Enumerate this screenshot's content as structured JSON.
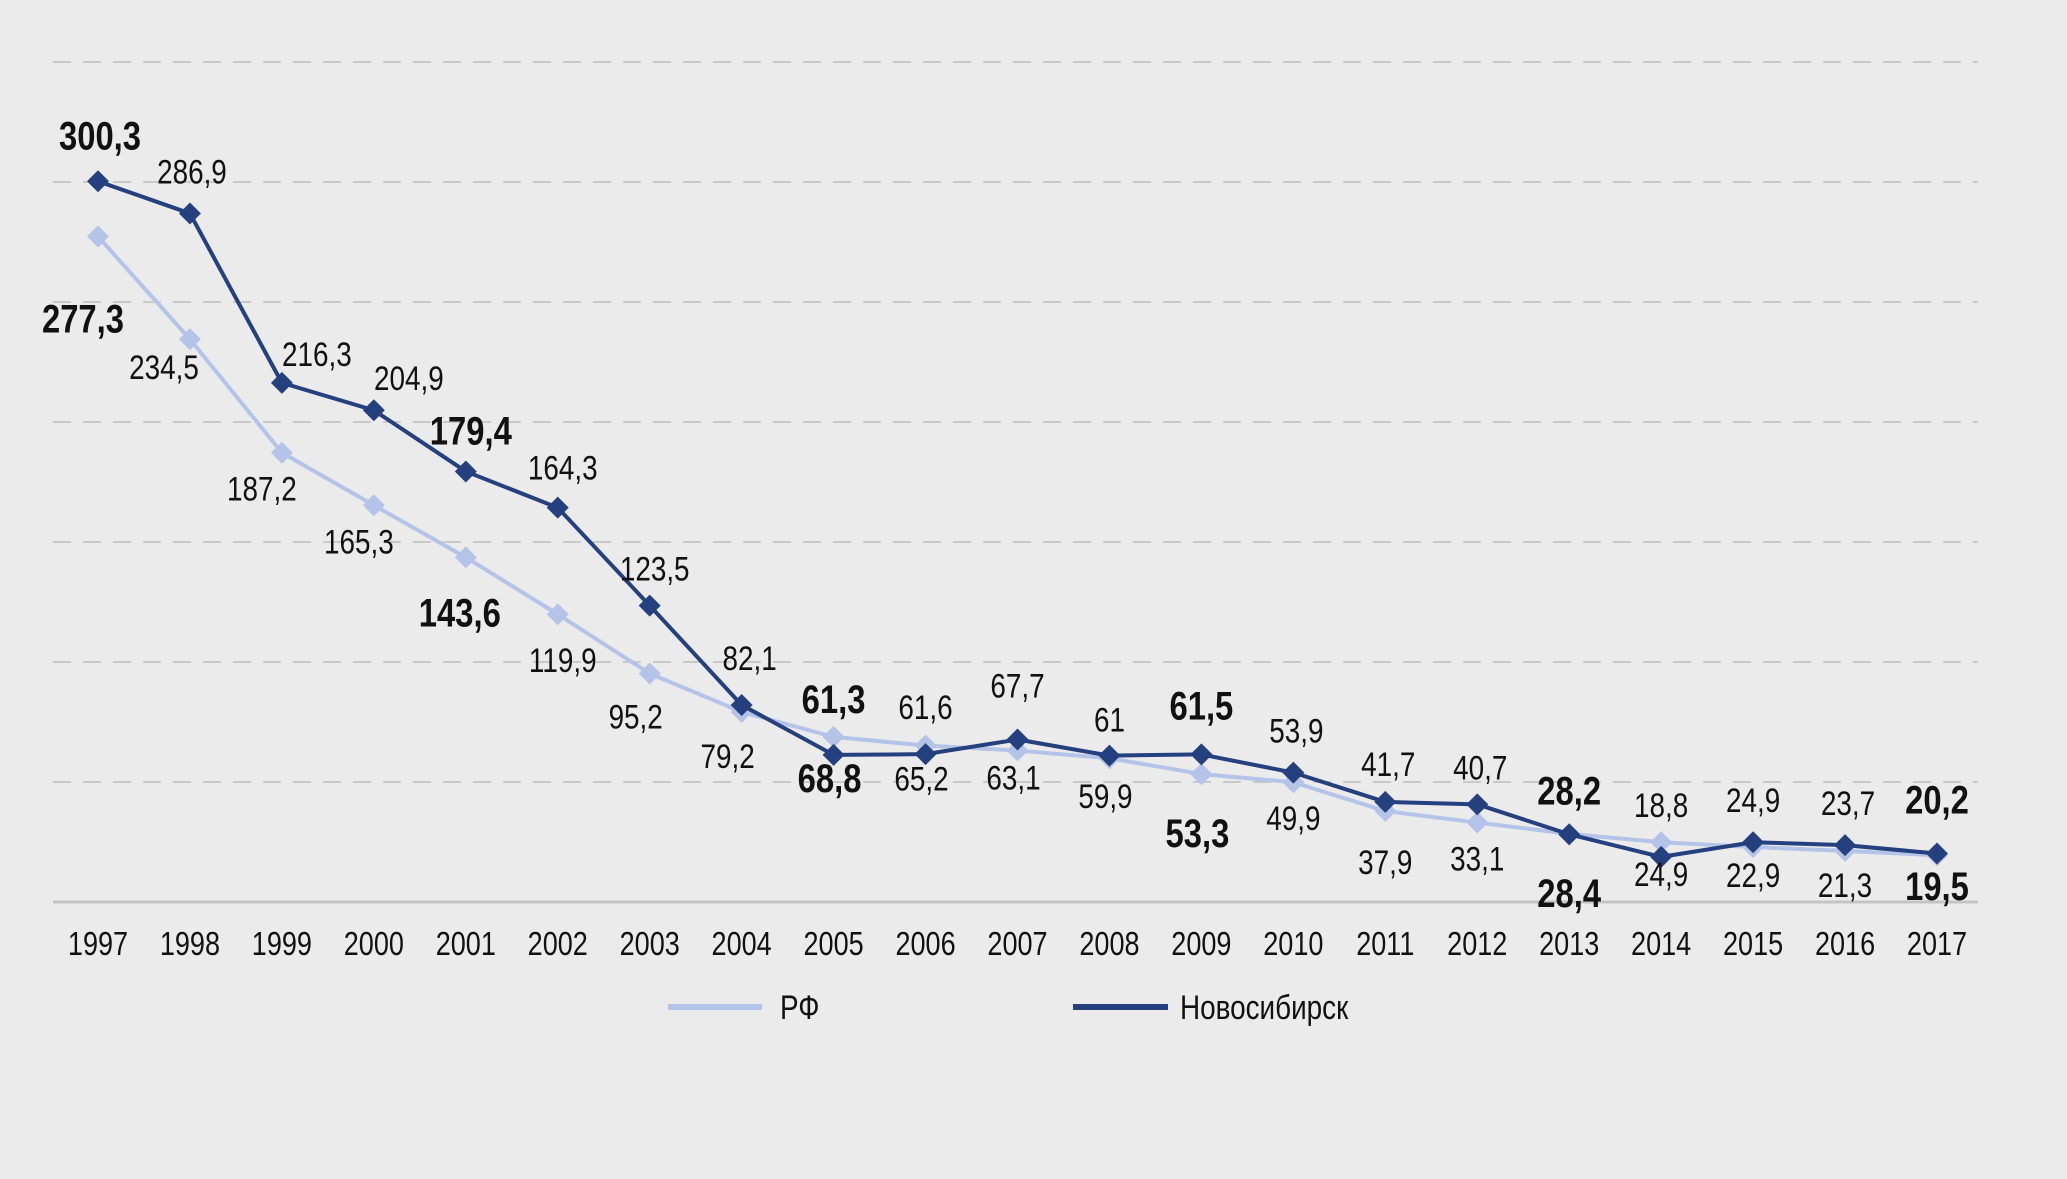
{
  "chart_data": {
    "type": "line",
    "title": "",
    "xlabel": "",
    "ylabel": "",
    "ylim": [
      0,
      350
    ],
    "y_gridlines": [
      50,
      100,
      150,
      200,
      250,
      300,
      350
    ],
    "grid": true,
    "y_tick_labels_shown": false,
    "legend_position": "bottom",
    "categories": [
      "1997",
      "1998",
      "1999",
      "2000",
      "2001",
      "2002",
      "2003",
      "2004",
      "2005",
      "2006",
      "2007",
      "2008",
      "2009",
      "2010",
      "2011",
      "2012",
      "2013",
      "2014",
      "2015",
      "2016",
      "2017"
    ],
    "bold_label_years": [
      "1997",
      "2001",
      "2005",
      "2009",
      "2013",
      "2017"
    ],
    "series": [
      {
        "name": "РФ",
        "color": "#b4c3e8",
        "marker": "diamond",
        "values": [
          277.3,
          234.5,
          187.2,
          165.3,
          143.6,
          119.9,
          95.2,
          79.2,
          68.8,
          65.2,
          63.1,
          59.9,
          53.3,
          49.9,
          37.9,
          33.1,
          28.4,
          24.9,
          22.9,
          21.3,
          19.5
        ],
        "labels": [
          "277,3",
          "234,5",
          "187,2",
          "165,3",
          "143,6",
          "119,9",
          "95,2",
          "79,2",
          "68,8",
          "65,2",
          "63,1",
          "59,9",
          "53,3",
          "49,9",
          "37,9",
          "33,1",
          "28,4",
          "24,9",
          "22,9",
          "21,3",
          "19,5"
        ]
      },
      {
        "name": "Новосибирск",
        "color": "#24407e",
        "marker": "diamond",
        "values": [
          300.3,
          286.9,
          216.3,
          204.9,
          179.4,
          164.3,
          123.5,
          82.1,
          61.3,
          61.6,
          67.7,
          61,
          61.5,
          53.9,
          41.7,
          40.7,
          28.2,
          18.8,
          24.9,
          23.7,
          20.2
        ],
        "labels": [
          "300,3",
          "286,9",
          "216,3",
          "204,9",
          "179,4",
          "164,3",
          "123,5",
          "82,1",
          "61,3",
          "61,6",
          "67,7",
          "61",
          "61,5",
          "53,9",
          "41,7",
          "40,7",
          "28,2",
          "18,8",
          "24,9",
          "23,7",
          "20,2"
        ]
      }
    ]
  },
  "legend": {
    "items": [
      {
        "label": "РФ",
        "color": "#b4c3e8"
      },
      {
        "label": "Новосибирск",
        "color": "#24407e"
      }
    ]
  }
}
